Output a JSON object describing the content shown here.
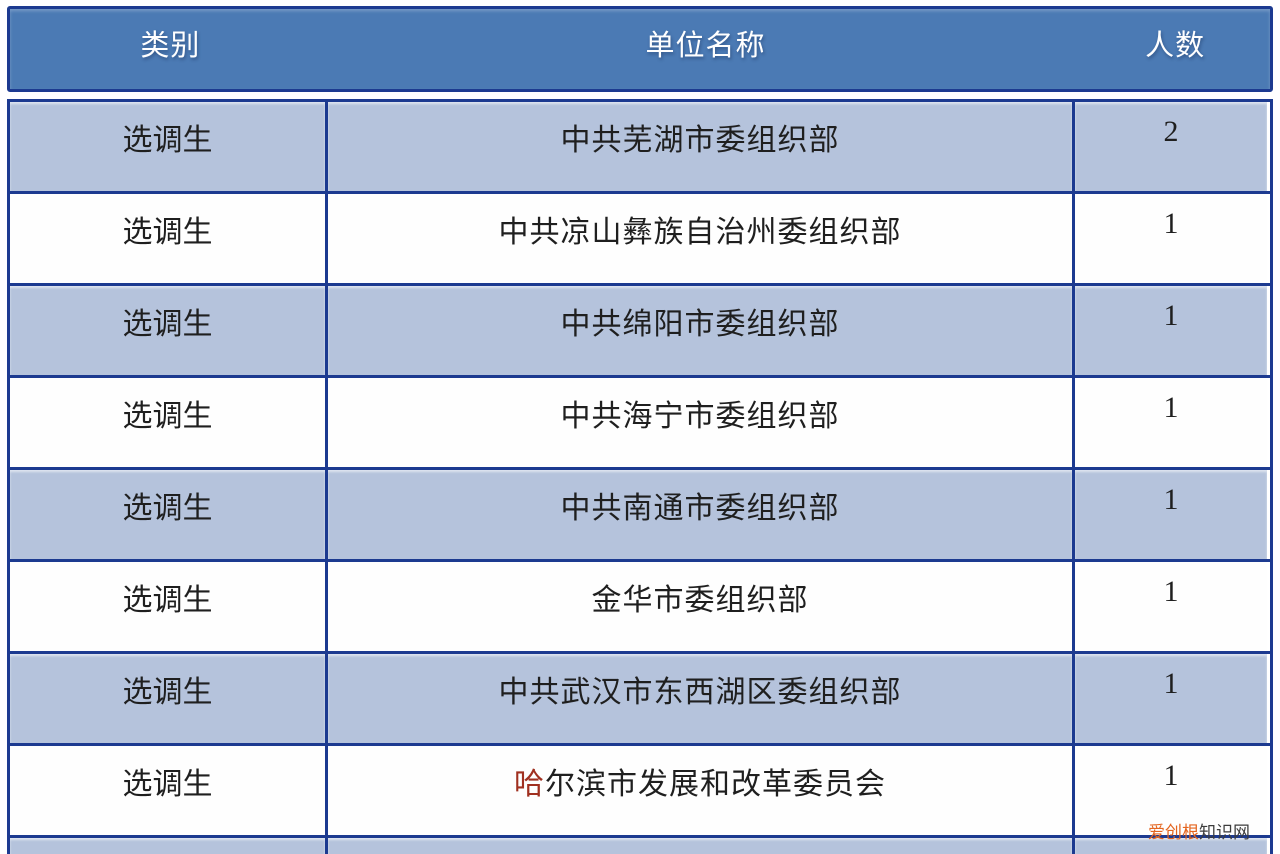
{
  "colors": {
    "border": "#1c3a90",
    "header_bg": "#4b7ab4",
    "row_blue": "#b5c3dc",
    "row_white": "#fefefe",
    "header_text": "#ffffff",
    "body_text": "#1f1f1f",
    "highlight_char": "#a03020",
    "watermark_brand": "#e4651f",
    "watermark_suffix": "#3c3c3c"
  },
  "table": {
    "columns": [
      {
        "key": "category",
        "label": "类别"
      },
      {
        "key": "unit",
        "label": "单位名称"
      },
      {
        "key": "count",
        "label": "人数"
      }
    ],
    "rows": [
      {
        "category": "选调生",
        "unit": "中共芜湖市委组织部",
        "count": "2",
        "shade": "blue"
      },
      {
        "category": "选调生",
        "unit": "中共凉山彝族自治州委组织部",
        "count": "1",
        "shade": "white"
      },
      {
        "category": "选调生",
        "unit": "中共绵阳市委组织部",
        "count": "1",
        "shade": "blue"
      },
      {
        "category": "选调生",
        "unit": "中共海宁市委组织部",
        "count": "1",
        "shade": "white"
      },
      {
        "category": "选调生",
        "unit": "中共南通市委组织部",
        "count": "1",
        "shade": "blue"
      },
      {
        "category": "选调生",
        "unit": "金华市委组织部",
        "count": "1",
        "shade": "white"
      },
      {
        "category": "选调生",
        "unit": "中共武汉市东西湖区委组织部",
        "count": "1",
        "shade": "blue"
      },
      {
        "category": "选调生",
        "unit": "哈尔滨市发展和改革委员会",
        "count": "1",
        "shade": "white",
        "first_char_highlighted": true
      },
      {
        "category": "",
        "unit": "",
        "count": "",
        "shade": "blue",
        "partial": true
      }
    ]
  },
  "watermark": {
    "brand": "爱创根",
    "suffix": "知识网"
  }
}
